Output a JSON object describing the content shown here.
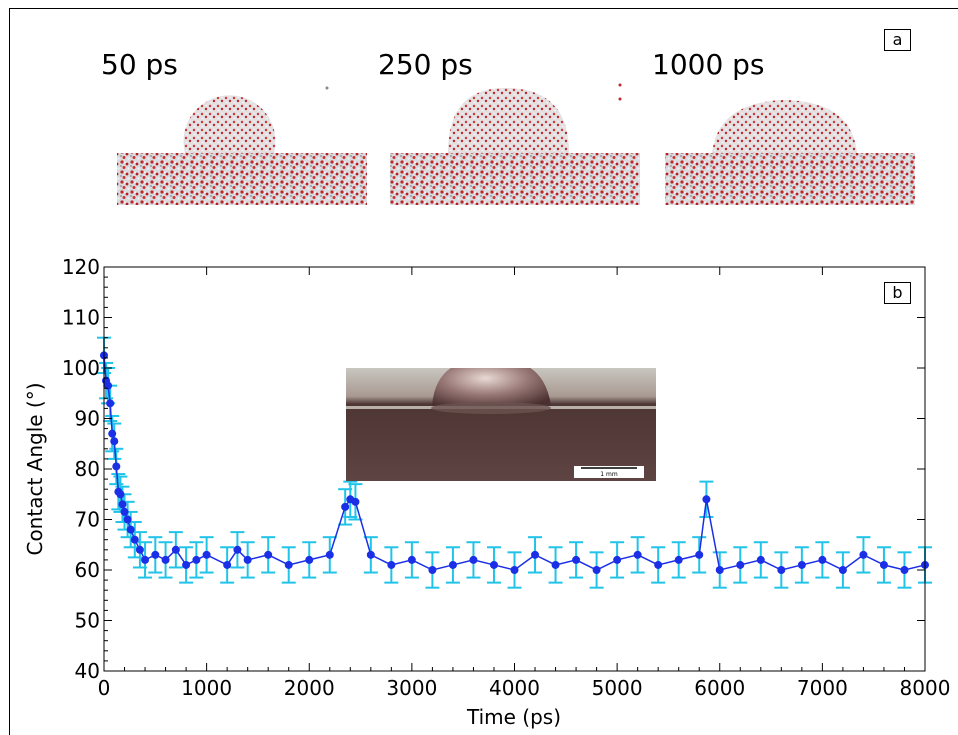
{
  "panel_a": {
    "label": "a",
    "snapshots": [
      {
        "label": "50 ps"
      },
      {
        "label": "250 ps"
      },
      {
        "label": "1000 ps"
      }
    ]
  },
  "panel_b": {
    "label": "b",
    "inset_scale_label": "1 mm"
  },
  "colors": {
    "marker": "#1a2fe6",
    "errorbar": "#21c4e8",
    "water_red": "#c0282a",
    "water_white": "#e8e8ec",
    "inset_bg": "#5a3e3c"
  },
  "chart_data": {
    "type": "scatter",
    "xlabel": "Time (ps)",
    "ylabel": "Contact Angle (°)",
    "xlim": [
      0,
      8000
    ],
    "ylim": [
      40,
      120
    ],
    "xticks": [
      "0",
      "1000",
      "2000",
      "3000",
      "4000",
      "5000",
      "6000",
      "7000",
      "8000"
    ],
    "yticks": [
      "40",
      "50",
      "60",
      "70",
      "80",
      "90",
      "100",
      "110",
      "120"
    ],
    "error_bar": 3.5,
    "series": [
      {
        "x": [
          0,
          20,
          40,
          60,
          80,
          100,
          120,
          140,
          160,
          180,
          200,
          230,
          260,
          300,
          350,
          400,
          500,
          600,
          700,
          800,
          900,
          1000,
          1200,
          1300,
          1400,
          1600,
          1800,
          2000,
          2200,
          2350,
          2400,
          2450,
          2600,
          2800,
          3000,
          3200,
          3400,
          3600,
          3800,
          4000,
          4200,
          4400,
          4600,
          4800,
          5000,
          5200,
          5400,
          5600,
          5800,
          5870,
          6000,
          6200,
          6400,
          6600,
          6800,
          7000,
          7200,
          7400,
          7600,
          7800,
          8000
        ],
        "y": [
          102.5,
          97.5,
          96.5,
          93,
          87,
          85.5,
          80.5,
          75.5,
          75,
          73,
          71.5,
          70,
          68,
          66,
          64,
          62,
          63,
          62,
          64,
          61,
          62,
          63,
          61,
          64,
          62,
          63,
          61,
          62,
          63,
          72.5,
          74,
          73.5,
          63,
          61,
          62,
          60,
          61,
          62,
          61,
          60,
          63,
          61,
          62,
          60,
          62,
          63,
          61,
          62,
          63,
          74,
          60,
          61,
          62,
          60,
          61,
          62,
          60,
          63,
          61,
          60,
          61
        ]
      }
    ]
  }
}
